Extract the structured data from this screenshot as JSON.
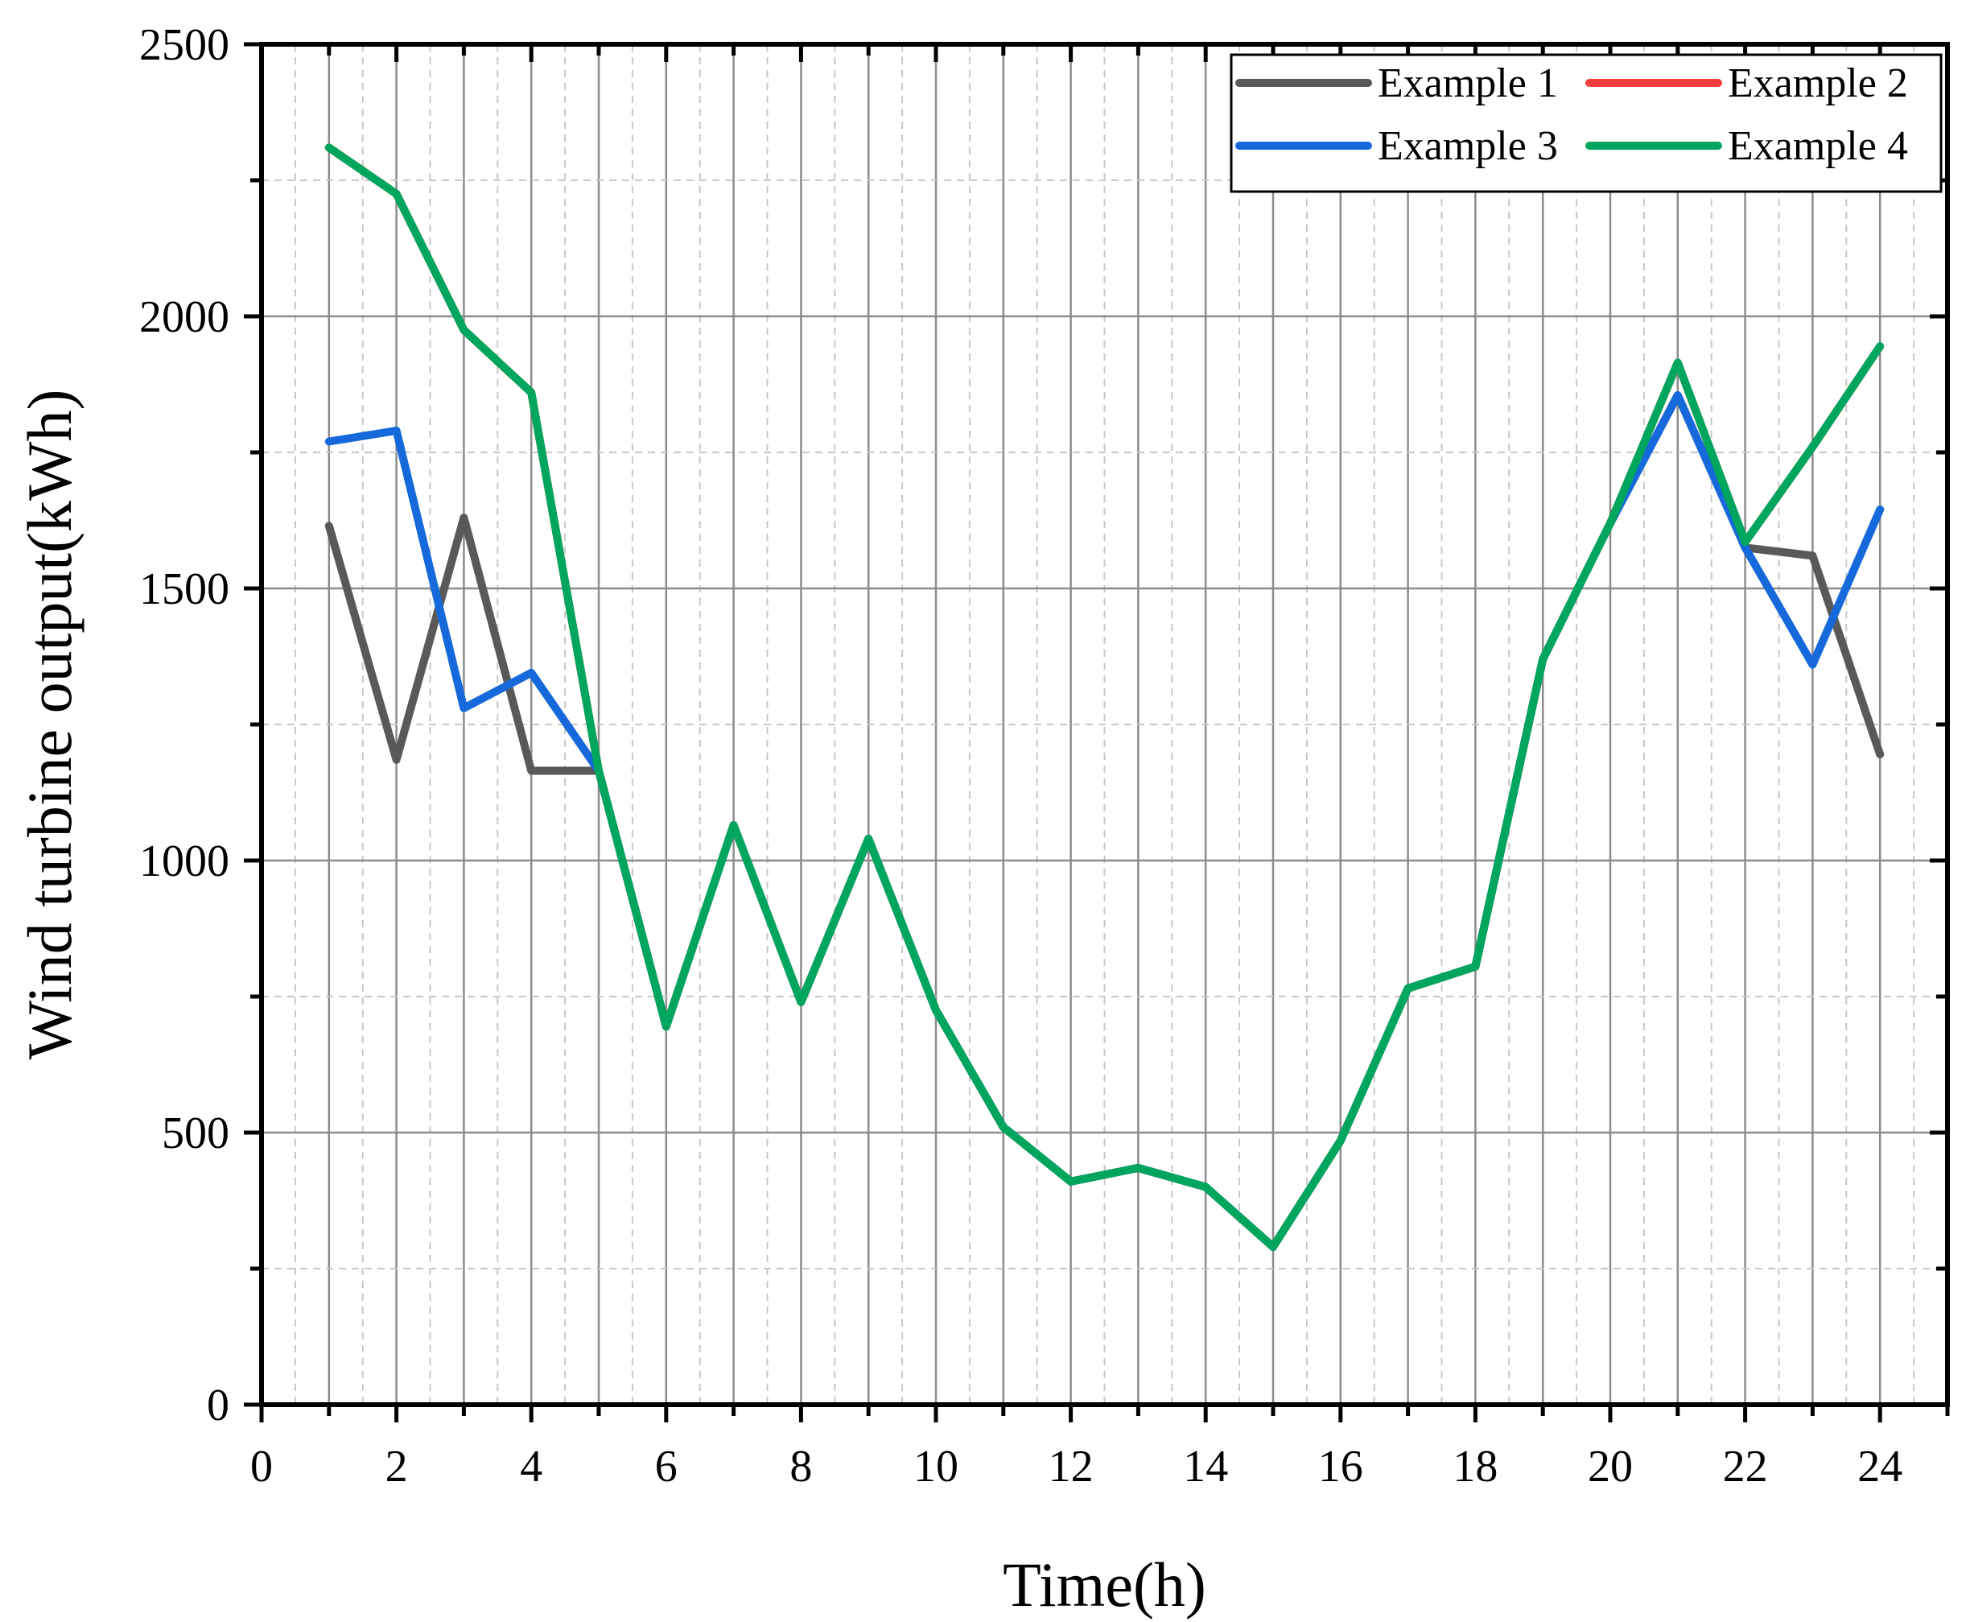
{
  "chart_data": {
    "type": "line",
    "title": "",
    "xlabel": "Time(h)",
    "ylabel": "Wind turbine output(kWh)",
    "xlim": [
      0,
      25
    ],
    "ylim": [
      0,
      2500
    ],
    "xticks": [
      0,
      2,
      4,
      6,
      8,
      10,
      12,
      14,
      16,
      18,
      20,
      22,
      24
    ],
    "yticks": [
      0,
      500,
      1000,
      1500,
      2000,
      2500
    ],
    "grid": true,
    "legend_position": "top-right",
    "x": [
      1,
      2,
      3,
      4,
      5,
      6,
      7,
      8,
      9,
      10,
      11,
      12,
      13,
      14,
      15,
      16,
      17,
      18,
      19,
      20,
      21,
      22,
      23,
      24
    ],
    "series": [
      {
        "name": "Example 1",
        "color": "#595959",
        "values": [
          1615,
          1185,
          1630,
          1165,
          1165,
          695,
          1065,
          740,
          1040,
          725,
          510,
          410,
          435,
          400,
          290,
          485,
          765,
          805,
          1370,
          1620,
          1855,
          1575,
          1560,
          1195
        ]
      },
      {
        "name": "Example 2",
        "color": "#f23d3d",
        "values": [
          2310,
          2225,
          1975,
          1860,
          1165,
          695,
          1065,
          740,
          1040,
          725,
          510,
          410,
          435,
          400,
          290,
          485,
          765,
          805,
          1370,
          1620,
          1915,
          1585,
          1760,
          1945
        ]
      },
      {
        "name": "Example 3",
        "color": "#1569db",
        "values": [
          1770,
          1790,
          1280,
          1345,
          1165,
          695,
          1065,
          740,
          1040,
          725,
          510,
          410,
          435,
          400,
          290,
          485,
          765,
          805,
          1370,
          1620,
          1855,
          1575,
          1360,
          1645
        ]
      },
      {
        "name": "Example 4",
        "color": "#00a65e",
        "values": [
          2310,
          2225,
          1975,
          1860,
          1165,
          695,
          1065,
          740,
          1040,
          725,
          510,
          410,
          435,
          400,
          290,
          485,
          765,
          805,
          1370,
          1620,
          1915,
          1585,
          1760,
          1945
        ]
      }
    ]
  }
}
